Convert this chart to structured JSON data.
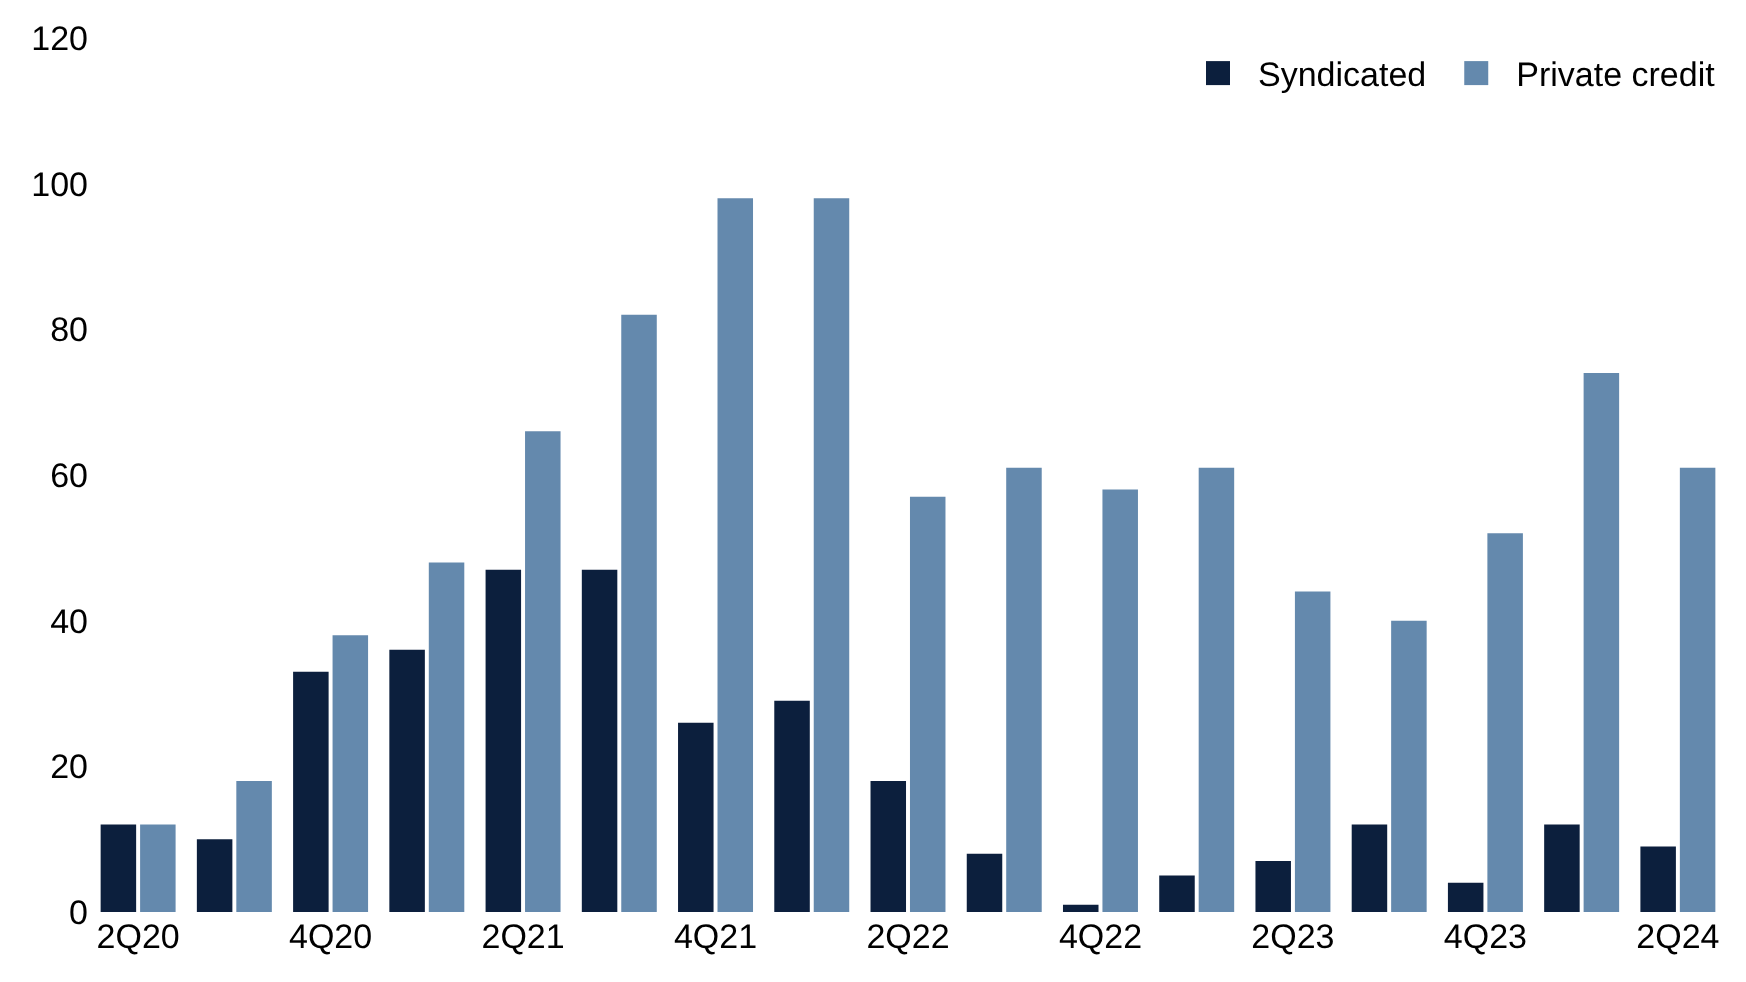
{
  "chart_data": {
    "type": "bar",
    "categories": [
      "2Q20",
      null,
      "4Q20",
      null,
      "2Q21",
      null,
      "4Q21",
      null,
      "2Q22",
      null,
      "4Q22",
      null,
      "2Q23",
      null,
      "4Q23",
      null,
      "2Q24"
    ],
    "series": [
      {
        "name": "Syndicated",
        "color": "#0c1f3d",
        "values": [
          12,
          10,
          33,
          36,
          47,
          47,
          26,
          29,
          18,
          8,
          1,
          5,
          7,
          12,
          4,
          12,
          9
        ]
      },
      {
        "name": "Private credit",
        "color": "#6489ad",
        "values": [
          12,
          18,
          38,
          48,
          66,
          82,
          98,
          98,
          57,
          61,
          58,
          61,
          44,
          40,
          52,
          74,
          61
        ]
      }
    ],
    "ylim": [
      0,
      120
    ],
    "yticks": [
      0,
      20,
      40,
      60,
      80,
      100,
      120
    ],
    "legend": "top right"
  }
}
